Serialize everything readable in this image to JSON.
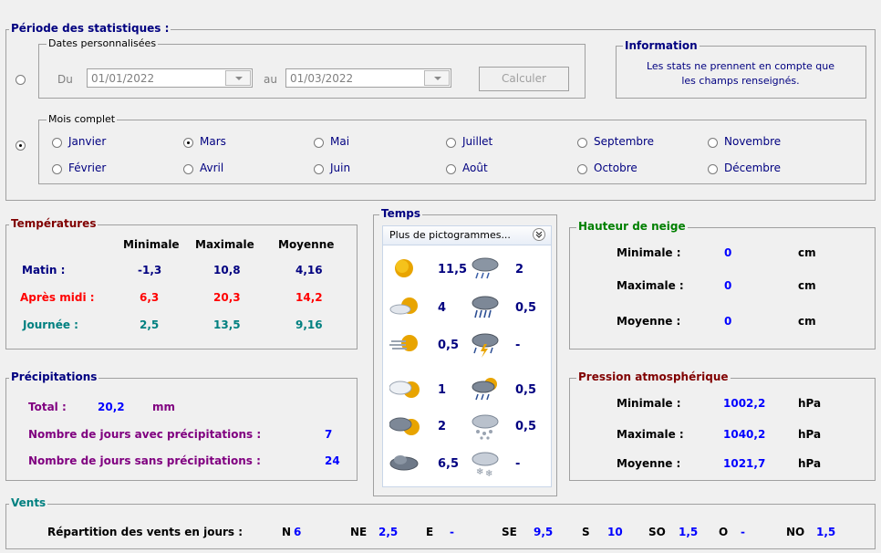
{
  "periode": {
    "title": "Période des statistiques :",
    "dates": {
      "legend": "Dates personnalisées",
      "du_label": "Du",
      "du_value": "01/01/2022",
      "au_label": "au",
      "au_value": "01/03/2022",
      "calc_label": "Calculer"
    },
    "info": {
      "legend": "Information",
      "text1": "Les stats ne prennent en compte que",
      "text2": "les champs renseignés."
    },
    "mois": {
      "legend": "Mois complet",
      "months": [
        "Janvier",
        "Mars",
        "Mai",
        "Juillet",
        "Septembre",
        "Novembre",
        "Février",
        "Avril",
        "Juin",
        "Août",
        "Octobre",
        "Décembre"
      ],
      "selected": "Mars"
    }
  },
  "temperatures": {
    "title": "Températures",
    "headers": [
      "Minimale",
      "Maximale",
      "Moyenne"
    ],
    "rows": [
      {
        "label": "Matin :",
        "min": "-1,3",
        "max": "10,8",
        "moy": "4,16"
      },
      {
        "label": "Après midi :",
        "min": "6,3",
        "max": "20,3",
        "moy": "14,2"
      },
      {
        "label": "Journée :",
        "min": "2,5",
        "max": "13,5",
        "moy": "9,16"
      }
    ]
  },
  "temps": {
    "title": "Temps",
    "dropdown": "Plus de pictogrammes...",
    "left": [
      "11,5",
      "4",
      "0,5",
      "1",
      "2",
      "6,5"
    ],
    "right": [
      "2",
      "0,5",
      "-",
      "0,5",
      "0,5",
      "-"
    ]
  },
  "neige": {
    "title": "Hauteur de neige",
    "rows": [
      {
        "label": "Minimale :",
        "value": "0",
        "unit": "cm"
      },
      {
        "label": "Maximale :",
        "value": "0",
        "unit": "cm"
      },
      {
        "label": "Moyenne :",
        "value": "0",
        "unit": "cm"
      }
    ]
  },
  "precip": {
    "title": "Précipitations",
    "total_label": "Total :",
    "total_value": "20,2",
    "total_unit": "mm",
    "avec_label": "Nombre de jours avec précipitations :",
    "avec_value": "7",
    "sans_label": "Nombre de jours sans précipitations :",
    "sans_value": "24"
  },
  "pression": {
    "title": "Pression atmosphérique",
    "rows": [
      {
        "label": "Minimale :",
        "value": "1002,2",
        "unit": "hPa"
      },
      {
        "label": "Maximale :",
        "value": "1040,2",
        "unit": "hPa"
      },
      {
        "label": "Moyenne :",
        "value": "1021,7",
        "unit": "hPa"
      }
    ]
  },
  "vents": {
    "title": "Vents",
    "label": "Répartition des vents en jours :",
    "dirs": [
      {
        "dir": "N",
        "val": "6"
      },
      {
        "dir": "NE",
        "val": "2,5"
      },
      {
        "dir": "E",
        "val": "-"
      },
      {
        "dir": "SE",
        "val": "9,5"
      },
      {
        "dir": "S",
        "val": "10"
      },
      {
        "dir": "SO",
        "val": "1,5"
      },
      {
        "dir": "O",
        "val": "-"
      },
      {
        "dir": "NO",
        "val": "1,5"
      }
    ]
  },
  "icons": [
    "sun-icon",
    "rain-cloud-icon",
    "partly-sunny-icon",
    "heavy-rain-icon",
    "fog-sun-icon",
    "storm-icon",
    "cloud-sun-icon",
    "rain-sun-icon",
    "dark-cloud-sun-icon",
    "hail-icon",
    "dark-cloud-icon",
    "snow-icon"
  ]
}
